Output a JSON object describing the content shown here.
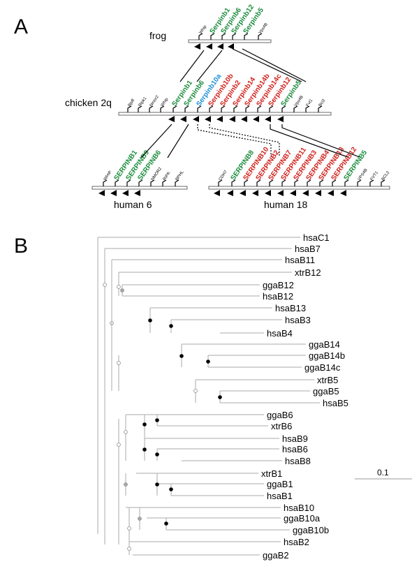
{
  "panels": {
    "a": "A",
    "b": "B"
  },
  "colors": {
    "green": "#1a8c3c",
    "red": "#d0201a",
    "blue": "#1d8fd6",
    "black": "#000000"
  },
  "chromosomes": [
    {
      "id": "frog",
      "label": "frog",
      "genes": [
        {
          "name": "Whip",
          "kind": "small"
        },
        {
          "name": "Serpinb1",
          "kind": "serpin",
          "color": "green"
        },
        {
          "name": "Serpinb6",
          "kind": "serpin",
          "color": "green"
        },
        {
          "name": "Serpinb12",
          "kind": "serpin",
          "color": "green"
        },
        {
          "name": "Serpinb5",
          "kind": "serpin",
          "color": "green"
        },
        {
          "name": "Vps4B",
          "kind": "small"
        }
      ]
    },
    {
      "id": "chicken",
      "label": "chicken 2q",
      "genes": [
        {
          "name": "Bpifl",
          "kind": "small"
        },
        {
          "name": "Ripk1",
          "kind": "small"
        },
        {
          "name": "Nmor2",
          "kind": "small"
        },
        {
          "name": "Whip",
          "kind": "small"
        },
        {
          "name": "Serpinb1",
          "kind": "serpin",
          "color": "green"
        },
        {
          "name": "Serpinb6",
          "kind": "serpin",
          "color": "green"
        },
        {
          "name": "Serpinb10a",
          "kind": "serpin",
          "color": "blue"
        },
        {
          "name": "Serpinb10b",
          "kind": "serpin",
          "color": "red"
        },
        {
          "name": "Serpinb2",
          "kind": "serpin",
          "color": "red"
        },
        {
          "name": "Serpinb14",
          "kind": "serpin",
          "color": "red"
        },
        {
          "name": "Serpinb14b",
          "kind": "serpin",
          "color": "red"
        },
        {
          "name": "Serpinb14c",
          "kind": "serpin",
          "color": "red"
        },
        {
          "name": "Serpinb12",
          "kind": "serpin",
          "color": "red"
        },
        {
          "name": "Serpinb5",
          "kind": "serpin",
          "color": "green"
        },
        {
          "name": "Vps4B",
          "kind": "small"
        },
        {
          "name": "Fvt1",
          "kind": "small"
        },
        {
          "name": "Bcl2",
          "kind": "small"
        }
      ]
    },
    {
      "id": "human6",
      "label": "human 6",
      "genes": [
        {
          "name": "WHIP",
          "kind": "small"
        },
        {
          "name": "SERPINB1",
          "kind": "serpin",
          "color": "green"
        },
        {
          "name": "SERPINB9",
          "kind": "serpin",
          "color": "green"
        },
        {
          "name": "SERPINB6",
          "kind": "serpin",
          "color": "green"
        },
        {
          "name": "NMOR2",
          "kind": "small"
        },
        {
          "name": "RIPK",
          "kind": "small"
        },
        {
          "name": "BPHL",
          "kind": "small"
        }
      ]
    },
    {
      "id": "human18",
      "label": "human 18",
      "genes": [
        {
          "name": "CDH7",
          "kind": "small"
        },
        {
          "name": "SERPINB8",
          "kind": "serpin",
          "color": "green"
        },
        {
          "name": "SERPINB10",
          "kind": "serpin",
          "color": "red"
        },
        {
          "name": "SERPINB2",
          "kind": "serpin",
          "color": "red"
        },
        {
          "name": "SERPINB7",
          "kind": "serpin",
          "color": "red"
        },
        {
          "name": "SERPINB11",
          "kind": "serpin",
          "color": "red"
        },
        {
          "name": "SERPINB3",
          "kind": "serpin",
          "color": "red"
        },
        {
          "name": "SERPINB4",
          "kind": "serpin",
          "color": "red"
        },
        {
          "name": "SERPINB13",
          "kind": "serpin",
          "color": "red"
        },
        {
          "name": "SERPINB12",
          "kind": "serpin",
          "color": "red"
        },
        {
          "name": "SERPINB5",
          "kind": "serpin",
          "color": "green"
        },
        {
          "name": "VPS4B",
          "kind": "small"
        },
        {
          "name": "FVT1",
          "kind": "small"
        },
        {
          "name": "BCL2",
          "kind": "small"
        }
      ]
    }
  ],
  "tree": {
    "leaves": [
      "hsaC1",
      "hsaB7",
      "hsaB11",
      "xtrB12",
      "ggaB12",
      "hsaB12",
      "hsaB13",
      "hsaB3",
      "hsaB4",
      "ggaB14",
      "ggaB14b",
      "ggaB14c",
      "xtrB5",
      "ggaB5",
      "hsaB5",
      "ggaB6",
      "xtrB6",
      "hsaB9",
      "hsaB6",
      "hsaB8",
      "xtrB1",
      "ggaB1",
      "hsaB1",
      "hsaB10",
      "ggaB10a",
      "ggaB10b",
      "hsaB2",
      "ggaB2"
    ],
    "scale_label": "0.1"
  }
}
